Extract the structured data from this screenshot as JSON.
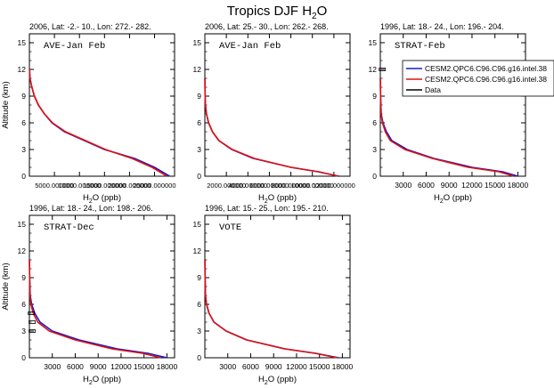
{
  "title": "Tropics DJF",
  "title_species": "H",
  "title_sub": "2",
  "title_species_tail": "O",
  "colors": {
    "model1": "#1a1acc",
    "model2": "#e01010",
    "data": "#000000"
  },
  "legend": {
    "entries": [
      "CESM2.QPC6.C96.C96.g16.intel.38",
      "CESM2.QPC6.C96.C96.g16.intel.38",
      "Data"
    ]
  },
  "chart_data": [
    {
      "type": "line",
      "header": "2006, Lat: -2.- 10., Lon: 272.- 282.",
      "label": "AVE-Jan Feb",
      "xlabel_main": "H",
      "xlabel_sub": "2",
      "xlabel_tail": "O (ppb)",
      "ylabel": "Altitude (km)",
      "xlim": [
        0,
        29000
      ],
      "ylim": [
        0,
        16
      ],
      "xticks": [
        5000,
        10000,
        15000,
        20000,
        25000
      ],
      "xticklabels": [
        "5000.000000",
        "10000.000000",
        "15000.000000",
        "20000.000000",
        "25000.000000"
      ],
      "yticks": [
        0,
        3,
        6,
        9,
        12,
        15
      ],
      "series": [
        {
          "color_key": "model1",
          "x": [
            28000,
            25000,
            21000,
            15000,
            11000,
            7000,
            4500,
            3000,
            1800,
            1000,
            500,
            100,
            30
          ],
          "y": [
            0,
            1,
            2,
            3,
            4,
            5,
            6,
            7,
            8,
            9,
            10,
            11,
            12
          ]
        },
        {
          "color_key": "model2",
          "x": [
            27500,
            24500,
            20500,
            15200,
            11200,
            7200,
            4600,
            3000,
            1800,
            1000,
            500,
            100,
            30
          ],
          "y": [
            0,
            1,
            2,
            3,
            4,
            5,
            6,
            7,
            8,
            9,
            10,
            11,
            12
          ]
        }
      ]
    },
    {
      "type": "line",
      "header": "2006, Lat: 25.- 30., Lon: 262.- 268.",
      "label": "AVE-Jan Feb",
      "xlabel_main": "H",
      "xlabel_sub": "2",
      "xlabel_tail": "O (ppb)",
      "ylabel": "",
      "xlim": [
        0,
        13500
      ],
      "ylim": [
        0,
        16
      ],
      "xticks": [
        2000,
        4000,
        6000,
        8000,
        10000,
        12000
      ],
      "xticklabels": [
        "2000.000000",
        "4000.000000",
        "6000.000000",
        "8000.000000",
        "10000.000000",
        "12000.000000"
      ],
      "yticks": [
        0,
        3,
        6,
        9,
        12,
        15
      ],
      "series": [
        {
          "color_key": "model1",
          "x": [
            12500,
            10500,
            8000,
            4500,
            2500,
            1300,
            700,
            350,
            150,
            60,
            25,
            10
          ],
          "y": [
            0,
            0.5,
            1,
            2,
            3,
            4,
            5,
            6,
            7,
            8,
            9,
            11
          ]
        },
        {
          "color_key": "model2",
          "x": [
            12400,
            10600,
            8000,
            4600,
            2550,
            1320,
            700,
            350,
            150,
            60,
            25,
            10
          ],
          "y": [
            0,
            0.5,
            1,
            2,
            3,
            4,
            5,
            6,
            7,
            8,
            9,
            11
          ]
        }
      ]
    },
    {
      "type": "line",
      "header": "1996, Lat: 18.- 24., Lon: 196.- 204.",
      "label": "STRAT-Feb",
      "xlabel_main": "H",
      "xlabel_sub": "2",
      "xlabel_tail": "O (ppb)",
      "ylabel": "",
      "xlim": [
        0,
        19000
      ],
      "ylim": [
        0,
        16
      ],
      "xticks": [
        3000,
        6000,
        9000,
        12000,
        15000,
        18000
      ],
      "xticklabels": [
        "3000",
        "6000",
        "9000",
        "12000",
        "15000",
        "18000"
      ],
      "yticks": [
        0,
        3,
        6,
        9,
        12,
        15
      ],
      "series": [
        {
          "color_key": "model1",
          "x": [
            18000,
            16000,
            12000,
            7000,
            3500,
            1500,
            800,
            350,
            120,
            40,
            15
          ],
          "y": [
            0,
            0.5,
            1,
            2,
            3,
            4,
            5,
            6,
            7,
            9,
            11
          ]
        },
        {
          "color_key": "model2",
          "x": [
            17500,
            15500,
            11500,
            6800,
            3200,
            1300,
            650,
            280,
            100,
            35,
            12
          ],
          "y": [
            0,
            0.5,
            1,
            2,
            3,
            4,
            5,
            6,
            7,
            9,
            11
          ]
        }
      ],
      "data_points": [
        {
          "x": 200,
          "y": 12
        }
      ]
    },
    {
      "type": "line",
      "header": "1996, Lat: 18.- 24., Lon: 198.- 206.",
      "label": "STRAT-Dec",
      "xlabel_main": "H",
      "xlabel_sub": "2",
      "xlabel_tail": "O (ppb)",
      "ylabel": "Altitude (km)",
      "xlim": [
        0,
        19000
      ],
      "ylim": [
        0,
        16
      ],
      "xticks": [
        3000,
        6000,
        9000,
        12000,
        15000,
        18000
      ],
      "xticklabels": [
        "3000",
        "6000",
        "9000",
        "12000",
        "15000",
        "18000"
      ],
      "yticks": [
        0,
        3,
        6,
        9,
        12,
        15
      ],
      "series": [
        {
          "color_key": "model1",
          "x": [
            18000,
            15500,
            11500,
            6500,
            3000,
            1400,
            700,
            300,
            100,
            35,
            12
          ],
          "y": [
            0,
            0.5,
            1,
            2,
            3,
            4,
            5,
            6,
            7,
            9,
            11
          ]
        },
        {
          "color_key": "model2",
          "x": [
            17200,
            14800,
            10800,
            6000,
            2600,
            1100,
            500,
            200,
            80,
            30,
            10
          ],
          "y": [
            0,
            0.5,
            1,
            2,
            3,
            4,
            5,
            6,
            7,
            9,
            11
          ]
        }
      ],
      "data_points": [
        {
          "x": 300,
          "y": 3
        },
        {
          "x": 300,
          "y": 4
        },
        {
          "x": 200,
          "y": 5
        }
      ]
    },
    {
      "type": "line",
      "header": "1996, Lat: 15.- 25., Lon: 195.- 210.",
      "label": "VOTE",
      "xlabel_main": "H",
      "xlabel_sub": "2",
      "xlabel_tail": "O (ppb)",
      "ylabel": "",
      "xlim": [
        0,
        19000
      ],
      "ylim": [
        0,
        16
      ],
      "xticks": [
        3000,
        6000,
        9000,
        12000,
        15000,
        18000
      ],
      "xticklabels": [
        "3000",
        "6000",
        "9000",
        "12000",
        "15000",
        "18000"
      ],
      "yticks": [
        0,
        3,
        6,
        9,
        12,
        15
      ],
      "series": [
        {
          "color_key": "model1",
          "x": [
            17500,
            14500,
            10500,
            5500,
            2800,
            1200,
            550,
            220,
            80,
            30,
            10
          ],
          "y": [
            0,
            0.5,
            1,
            2,
            3,
            4,
            5,
            6,
            7,
            9,
            11
          ]
        },
        {
          "color_key": "model2",
          "x": [
            17300,
            14400,
            10400,
            5450,
            2780,
            1190,
            545,
            218,
            79,
            30,
            10
          ],
          "y": [
            0,
            0.5,
            1,
            2,
            3,
            4,
            5,
            6,
            7,
            9,
            11
          ]
        }
      ]
    }
  ]
}
